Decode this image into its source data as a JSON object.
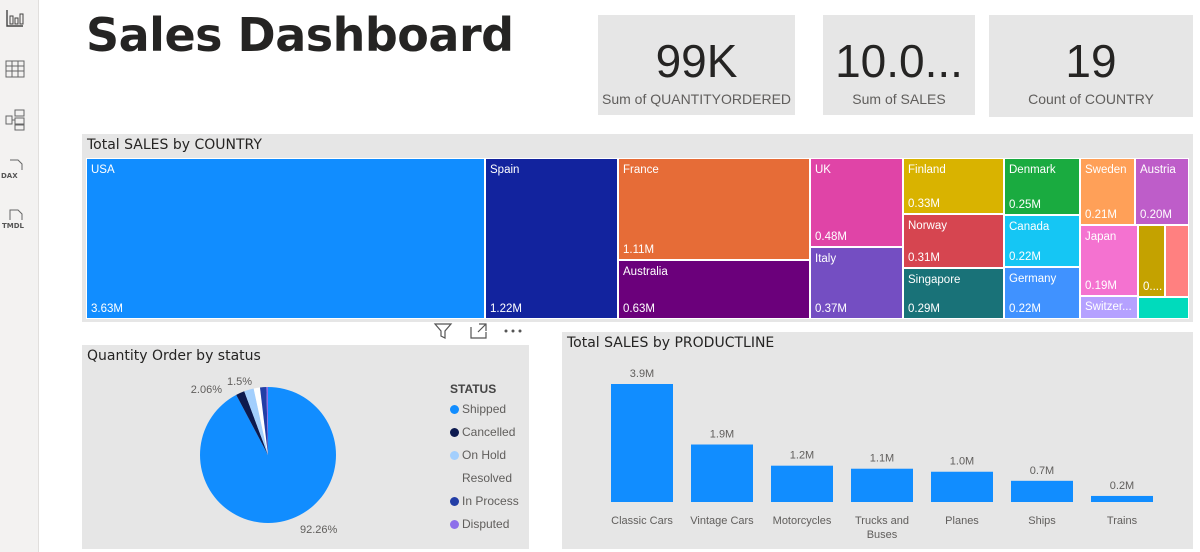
{
  "rail": {
    "icons": [
      "report-view-icon",
      "table-view-icon",
      "model-view-icon",
      "dax-query-icon",
      "tmdl-view-icon"
    ],
    "dax": "DAX",
    "tmdl": "TMDL"
  },
  "title": "Sales Dashboard",
  "cards": [
    {
      "value": "99K",
      "label": "Sum of QUANTITYORDERED"
    },
    {
      "value": "10.0...",
      "label": "Sum of SALES"
    },
    {
      "value": "19",
      "label": "Count of COUNTRY"
    }
  ],
  "treemap": {
    "title": "Total SALES by COUNTRY",
    "tiles": [
      {
        "name": "USA",
        "value": "3.63M",
        "color": "#118dff"
      },
      {
        "name": "Spain",
        "value": "1.22M",
        "color": "#12239e"
      },
      {
        "name": "France",
        "value": "1.11M",
        "color": "#e66c37"
      },
      {
        "name": "Australia",
        "value": "0.63M",
        "color": "#6b007b"
      },
      {
        "name": "UK",
        "value": "0.48M",
        "color": "#e044a7"
      },
      {
        "name": "Italy",
        "value": "0.37M",
        "color": "#744ec2"
      },
      {
        "name": "Finland",
        "value": "0.33M",
        "color": "#d9b300"
      },
      {
        "name": "Norway",
        "value": "0.31M",
        "color": "#d64550"
      },
      {
        "name": "Singapore",
        "value": "0.29M",
        "color": "#197278"
      },
      {
        "name": "Denmark",
        "value": "0.25M",
        "color": "#1aab40"
      },
      {
        "name": "Canada",
        "value": "0.22M",
        "color": "#15c6f4"
      },
      {
        "name": "Germany",
        "value": "0.22M",
        "color": "#4092ff"
      },
      {
        "name": "Sweden",
        "value": "0.21M",
        "color": "#ffa058"
      },
      {
        "name": "Austria",
        "value": "0.20M",
        "color": "#be5dc9"
      },
      {
        "name": "Japan",
        "value": "0.19M",
        "color": "#f472d0"
      },
      {
        "name": "Switzer...",
        "value": "",
        "color": "#b5a1ff"
      },
      {
        "name": "",
        "value": "0....",
        "color": "#c4a200"
      },
      {
        "name": "",
        "value": "",
        "color": "#ff8080"
      },
      {
        "name": "",
        "value": "",
        "color": "#00dbbc"
      }
    ]
  },
  "visual_header": {
    "icons": [
      "filter-icon",
      "focus-mode-icon",
      "more-options-icon"
    ]
  },
  "chart_data": [
    {
      "type": "pie",
      "title": "Quantity Order by status",
      "legend_title": "STATUS",
      "legend_position": "right",
      "slices": [
        {
          "name": "Shipped",
          "value": 92.26,
          "label": "92.26%",
          "color": "#118dff"
        },
        {
          "name": "Cancelled",
          "value": 2.06,
          "label": "2.06%",
          "color": "#0d1a4f"
        },
        {
          "name": "On Hold",
          "value": 2.3,
          "label": "",
          "color": "#a3cffd"
        },
        {
          "name": "Resolved",
          "value": 1.5,
          "label": "1.5%",
          "color": "#ffffff"
        },
        {
          "name": "In Process",
          "value": 1.5,
          "label": "",
          "color": "#233ea6"
        },
        {
          "name": "Disputed",
          "value": 0.38,
          "label": "",
          "color": "#8d6fea"
        }
      ]
    },
    {
      "type": "bar",
      "title": "Total SALES by PRODUCTLINE",
      "color": "#118dff",
      "categories": [
        "Classic Cars",
        "Vintage Cars",
        "Motorcycles",
        "Trucks and Buses",
        "Planes",
        "Ships",
        "Trains"
      ],
      "values": [
        3.9,
        1.9,
        1.2,
        1.1,
        1.0,
        0.7,
        0.2
      ],
      "labels": [
        "3.9M",
        "1.9M",
        "1.2M",
        "1.1M",
        "1.0M",
        "0.7M",
        "0.2M"
      ],
      "ylim": [
        0,
        3.9
      ]
    }
  ]
}
